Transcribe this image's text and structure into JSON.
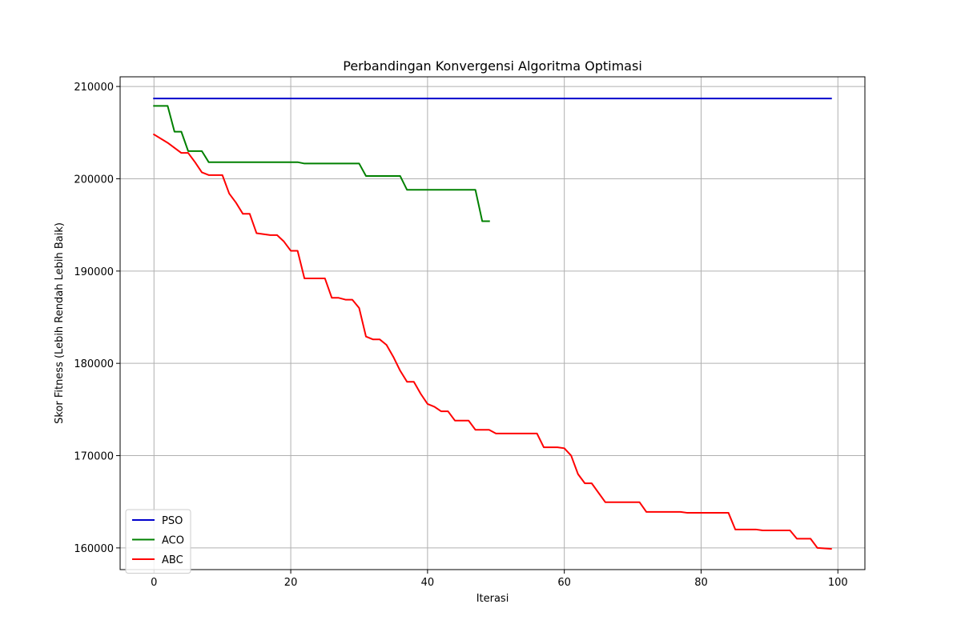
{
  "chart_data": {
    "type": "line",
    "title": "Perbandingan Konvergensi Algoritma Optimasi",
    "xlabel": "Iterasi",
    "ylabel": "Skor Fitness (Lebih Rendah Lebih Baik)",
    "xlim": [
      -4.95,
      103.95
    ],
    "ylim": [
      157650,
      211050
    ],
    "xticks": [
      0,
      20,
      40,
      60,
      80,
      100
    ],
    "yticks": [
      160000,
      170000,
      180000,
      190000,
      200000,
      210000
    ],
    "grid": true,
    "legend_position": "lower-left",
    "series": [
      {
        "name": "PSO",
        "color": "#0000cc",
        "points": [
          [
            0,
            208700
          ],
          [
            99,
            208700
          ]
        ]
      },
      {
        "name": "ACO",
        "color": "#008000",
        "points": [
          [
            0,
            207900
          ],
          [
            2,
            207900
          ],
          [
            3,
            205100
          ],
          [
            4,
            205100
          ],
          [
            5,
            203000
          ],
          [
            7,
            203000
          ],
          [
            8,
            201800
          ],
          [
            21,
            201800
          ],
          [
            22,
            201650
          ],
          [
            30,
            201650
          ],
          [
            31,
            200300
          ],
          [
            36,
            200300
          ],
          [
            37,
            198800
          ],
          [
            47,
            198800
          ],
          [
            48,
            195400
          ],
          [
            49,
            195400
          ]
        ]
      },
      {
        "name": "ABC",
        "color": "#ff0000",
        "points": [
          [
            0,
            204800
          ],
          [
            2,
            203900
          ],
          [
            4,
            202800
          ],
          [
            5,
            202800
          ],
          [
            6,
            201800
          ],
          [
            7,
            200700
          ],
          [
            8,
            200400
          ],
          [
            10,
            200400
          ],
          [
            11,
            198400
          ],
          [
            12,
            197400
          ],
          [
            13,
            196200
          ],
          [
            14,
            196200
          ],
          [
            15,
            194100
          ],
          [
            17,
            193900
          ],
          [
            18,
            193900
          ],
          [
            19,
            193200
          ],
          [
            20,
            192200
          ],
          [
            21,
            192200
          ],
          [
            22,
            189200
          ],
          [
            25,
            189200
          ],
          [
            26,
            187100
          ],
          [
            27,
            187100
          ],
          [
            28,
            186900
          ],
          [
            29,
            186900
          ],
          [
            30,
            186000
          ],
          [
            31,
            182900
          ],
          [
            32,
            182600
          ],
          [
            33,
            182600
          ],
          [
            34,
            182000
          ],
          [
            35,
            180700
          ],
          [
            36,
            179200
          ],
          [
            37,
            178000
          ],
          [
            38,
            178000
          ],
          [
            39,
            176700
          ],
          [
            40,
            175600
          ],
          [
            41,
            175300
          ],
          [
            42,
            174800
          ],
          [
            43,
            174800
          ],
          [
            44,
            173800
          ],
          [
            46,
            173800
          ],
          [
            47,
            172800
          ],
          [
            49,
            172800
          ],
          [
            50,
            172400
          ],
          [
            56,
            172400
          ],
          [
            57,
            170900
          ],
          [
            59,
            170900
          ],
          [
            60,
            170800
          ],
          [
            61,
            170000
          ],
          [
            62,
            168000
          ],
          [
            63,
            167000
          ],
          [
            64,
            167000
          ],
          [
            66,
            164950
          ],
          [
            71,
            164950
          ],
          [
            72,
            163900
          ],
          [
            77,
            163900
          ],
          [
            78,
            163800
          ],
          [
            84,
            163800
          ],
          [
            85,
            162000
          ],
          [
            88,
            162000
          ],
          [
            89,
            161900
          ],
          [
            93,
            161900
          ],
          [
            94,
            161000
          ],
          [
            96,
            161000
          ],
          [
            97,
            160000
          ],
          [
            99,
            159900
          ]
        ]
      }
    ]
  }
}
